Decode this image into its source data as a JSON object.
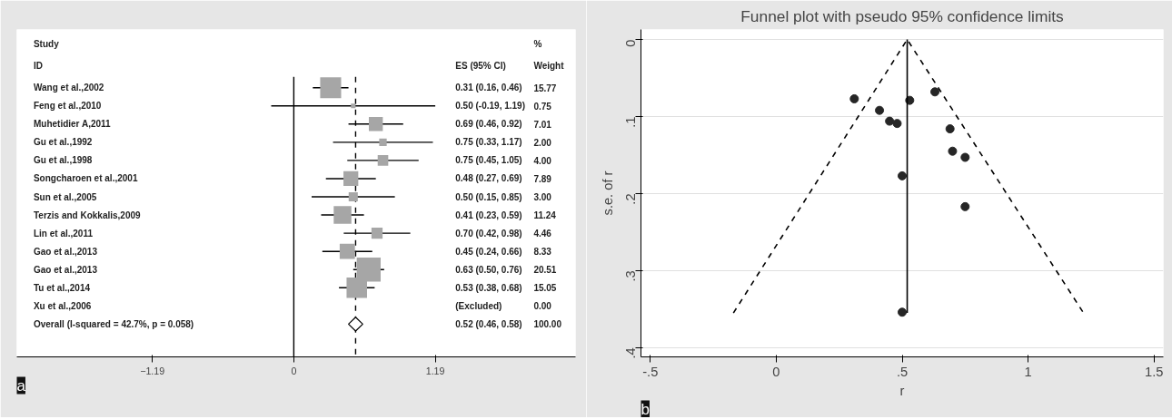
{
  "chart_data": [
    {
      "type": "scatter",
      "orientation": "horizontal",
      "annotations": [
        "Study",
        "ID",
        "ES (95% CI)",
        "%",
        "Weight",
        "a",
        "0.31 (0.16, 0.46)",
        "0.50 (-0.19, 1.19)",
        "0.69 (0.46, 0.92)",
        "0.75 (0.33, 1.17)",
        "0.75 (0.45, 1.05)",
        "0.48 (0.27, 0.69)",
        "0.50 (0.15, 0.85)",
        "0.41 (0.23, 0.59)",
        "0.70 (0.42, 0.98)",
        "0.45 (0.24, 0.66)",
        "0.63 (0.50, 0.76)",
        "0.53 (0.38, 0.68)",
        "(Excluded)",
        "0.52 (0.46, 0.58)",
        "15.77",
        "0.75",
        "7.01",
        "2.00",
        "4.00",
        "7.89",
        "3.00",
        "11.24",
        "4.46",
        "8.33",
        "20.51",
        "15.05",
        "0.00",
        "100.00"
      ],
      "categories": [
        "Wang et al.,2002",
        "Feng et al.,2010",
        "Muhetidier A,2011",
        "Gu et al.,1992",
        "Gu et al.,1998",
        "Songcharoen et al.,2001",
        "Sun et al.,2005",
        "Terzis and Kokkalis,2009",
        "Lin et al.,2011",
        "Gao et al.,2013",
        "Gao et al.,2013",
        "Tu et al.,2014",
        "Xu et al.,2006",
        "Overall  (I-squared = 42.7%, p = 0.058)"
      ],
      "series": [
        {
          "marker": "square",
          "color": "#a6a6a6",
          "values": [
            0.31,
            0.5,
            0.69,
            0.75,
            0.75,
            0.48,
            0.5,
            0.41,
            0.7,
            0.45,
            0.63,
            0.53,
            null,
            null
          ],
          "errors": [
            [
              0.16,
              0.46
            ],
            [
              -0.19,
              1.19
            ],
            [
              0.46,
              0.92
            ],
            [
              0.33,
              1.17
            ],
            [
              0.45,
              1.05
            ],
            [
              0.27,
              0.69
            ],
            [
              0.15,
              0.85
            ],
            [
              0.23,
              0.59
            ],
            [
              0.42,
              0.98
            ],
            [
              0.24,
              0.66
            ],
            [
              0.5,
              0.76
            ],
            [
              0.38,
              0.68
            ],
            null,
            null
          ],
          "sizes": [
            0.769,
            0.037,
            0.342,
            0.098,
            0.195,
            0.385,
            0.146,
            0.548,
            0.217,
            0.406,
            1,
            0.734,
            null,
            null
          ]
        },
        {
          "marker": "diamond",
          "color": "#ffffff",
          "values": [
            null,
            null,
            null,
            null,
            null,
            null,
            null,
            null,
            null,
            null,
            null,
            null,
            null,
            0.52
          ],
          "errors": [
            null,
            null,
            null,
            null,
            null,
            null,
            null,
            null,
            null,
            null,
            null,
            null,
            null,
            [
              0.46,
              0.58
            ]
          ]
        }
      ],
      "xlim": [
        -2.33,
        2.37
      ],
      "xticks": [
        -1.19,
        0,
        1.19
      ],
      "ref_lines": [
        {
          "axis": "x",
          "value": 0,
          "line_style": "solid"
        },
        {
          "axis": "x",
          "value": 0.52,
          "line_style": "dashed"
        }
      ]
    },
    {
      "type": "scatter",
      "title": "Funnel plot with pseudo 95% confidence limits",
      "xlabel": "r",
      "ylabel": "s.e. of r",
      "annotations": [
        "b"
      ],
      "series": [
        {
          "type": "scatter",
          "marker": "circle",
          "color": "#262626",
          "x": [
            0.31,
            0.41,
            0.45,
            0.48,
            0.53,
            0.63,
            0.69,
            0.7,
            0.75,
            0.5,
            0.75,
            0.5
          ],
          "values": [
            0.077,
            0.092,
            0.106,
            0.109,
            0.079,
            0.068,
            0.116,
            0.145,
            0.153,
            0.177,
            0.217,
            0.354
          ]
        },
        {
          "type": "line",
          "line_style": "dashed",
          "marker": "none",
          "color": "#000000",
          "x": [
            -0.17,
            0.52,
            1.22
          ],
          "values": [
            0.355,
            0,
            0.355
          ]
        },
        {
          "type": "line",
          "line_style": "solid",
          "marker": "none",
          "color": "#000000",
          "x": [
            0.52,
            0.52
          ],
          "values": [
            0,
            0.355
          ]
        }
      ],
      "xlim": [
        -0.537,
        1.537
      ],
      "ylim": [
        0.412,
        -0.013
      ],
      "xticks": [
        {
          "value": -0.5,
          "label": "-.5"
        },
        0,
        {
          "value": 0.5,
          "label": ".5"
        },
        1,
        1.5
      ],
      "yticks": [
        0,
        {
          "value": 0.1,
          "label": ".1"
        },
        {
          "value": 0.2,
          "label": ".2"
        },
        {
          "value": 0.3,
          "label": ".3"
        },
        {
          "value": 0.4,
          "label": ".4"
        }
      ],
      "grid": "y"
    }
  ]
}
